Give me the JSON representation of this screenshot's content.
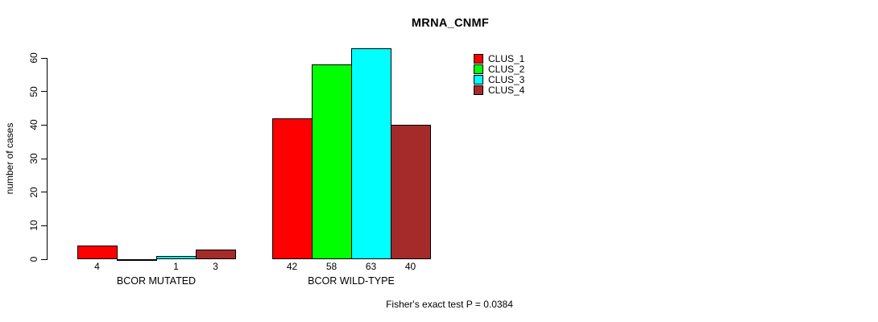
{
  "chart_data": {
    "type": "bar",
    "title": "MRNA_CNMF",
    "ylabel": "number of cases",
    "xlabel": "",
    "ylim": [
      0,
      60
    ],
    "yticks": [
      0,
      10,
      20,
      30,
      40,
      50,
      60
    ],
    "grid": false,
    "legend_position": "top-right",
    "categories": [
      "BCOR MUTATED",
      "BCOR WILD-TYPE"
    ],
    "series": [
      {
        "name": "CLUS_1",
        "color": "#ff0000",
        "values": [
          4,
          42
        ]
      },
      {
        "name": "CLUS_2",
        "color": "#00ff00",
        "values": [
          0,
          58
        ]
      },
      {
        "name": "CLUS_3",
        "color": "#00ffff",
        "values": [
          1,
          63
        ]
      },
      {
        "name": "CLUS_4",
        "color": "#a52a2a",
        "values": [
          3,
          40
        ]
      }
    ],
    "bar_value_labels": [
      [
        "4",
        "",
        "1",
        "3"
      ],
      [
        "42",
        "58",
        "63",
        "40"
      ]
    ],
    "annotation": "Fisher's exact test P = 0.0384",
    "axis_color": "#000000",
    "background_color": "#ffffff"
  }
}
